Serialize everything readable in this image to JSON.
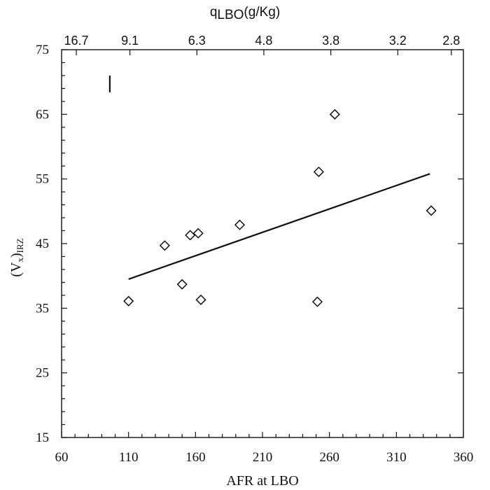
{
  "chart_data": {
    "type": "scatter",
    "title": "",
    "xlabel": "AFR at LBO",
    "ylabel": "(Vx)IRZ",
    "ylabel_parts": {
      "main": "(V",
      "sub_x": "x",
      "close": ")",
      "sub_irz": "IRZ"
    },
    "top_axis": {
      "label_main": "q",
      "label_sub": "LBO",
      "label_units": "(g/Kg)",
      "ticks": [
        {
          "label": "16.7",
          "x": 71
        },
        {
          "label": "9.1",
          "x": 111
        },
        {
          "label": "6.3",
          "x": 161
        },
        {
          "label": "4.8",
          "x": 211
        },
        {
          "label": "3.8",
          "x": 261
        },
        {
          "label": "3.2",
          "x": 311
        },
        {
          "label": "2.8",
          "x": 351
        }
      ]
    },
    "xlim": [
      60,
      360
    ],
    "ylim": [
      15,
      75
    ],
    "x_ticks": [
      60,
      110,
      160,
      210,
      260,
      310,
      360
    ],
    "y_ticks": [
      15,
      25,
      35,
      45,
      55,
      65,
      75
    ],
    "points": [
      {
        "x": 110,
        "y": 36.1
      },
      {
        "x": 137,
        "y": 44.7
      },
      {
        "x": 150,
        "y": 38.7
      },
      {
        "x": 156,
        "y": 46.3
      },
      {
        "x": 162,
        "y": 46.6
      },
      {
        "x": 164,
        "y": 36.3
      },
      {
        "x": 193,
        "y": 47.9
      },
      {
        "x": 251,
        "y": 36.0
      },
      {
        "x": 252,
        "y": 56.1
      },
      {
        "x": 264,
        "y": 65.0
      },
      {
        "x": 336,
        "y": 50.1
      }
    ],
    "trendline": {
      "x": [
        110,
        335
      ],
      "y": [
        39.5,
        55.8
      ]
    },
    "error_bar": {
      "x": 96,
      "y_low": 68.4,
      "y_high": 71.0
    },
    "grid": false,
    "legend": "none"
  }
}
